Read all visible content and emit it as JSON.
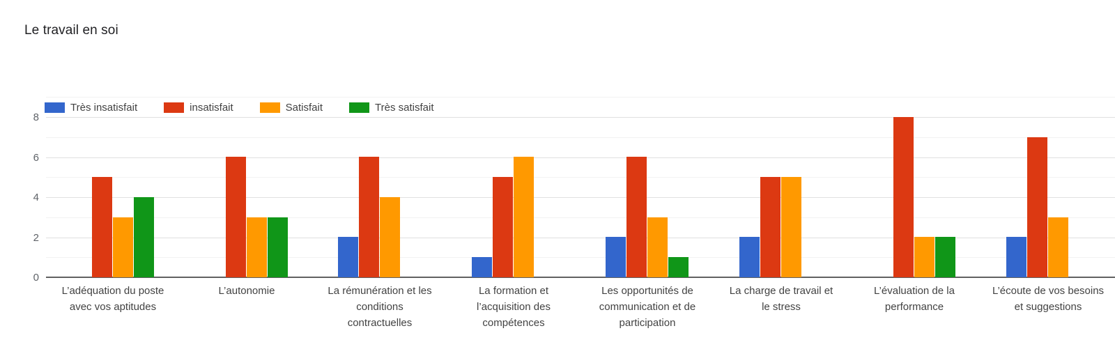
{
  "title": "Le travail en soi",
  "colors": {
    "tres_insatisfait": "#3366CC",
    "insatisfait": "#DC3912",
    "satisfait": "#FF9900",
    "tres_satisfait": "#109618",
    "gridline_major": "#e0e0e0",
    "gridline_minor": "#f2f2f2",
    "axis_baseline": "#616161",
    "tick_text": "#5f6368",
    "label_text": "#424242"
  },
  "legend": [
    {
      "label": "Très insatisfait",
      "color": "#3366CC"
    },
    {
      "label": "insatisfait",
      "color": "#DC3912"
    },
    {
      "label": "Satisfait",
      "color": "#FF9900"
    },
    {
      "label": "Très satisfait",
      "color": "#109618"
    }
  ],
  "chart_data": {
    "type": "bar",
    "title": "Le travail en soi",
    "categories": [
      "L’adéquation du poste avec vos aptitudes",
      "L’autonomie",
      "La rémunération et les conditions contractuelles",
      "La formation et l’acquisition des compétences",
      "Les opportunités de communication et de participation",
      "La charge de travail et le stress",
      "L’évaluation de la performance",
      "L’écoute de vos besoins et suggestions"
    ],
    "series": [
      {
        "name": "Très insatisfait",
        "color": "#3366CC",
        "values": [
          0,
          0,
          2,
          1,
          2,
          2,
          0,
          2
        ]
      },
      {
        "name": "insatisfait",
        "color": "#DC3912",
        "values": [
          5,
          6,
          6,
          5,
          6,
          5,
          8,
          7
        ]
      },
      {
        "name": "Satisfait",
        "color": "#FF9900",
        "values": [
          3,
          3,
          4,
          6,
          3,
          5,
          2,
          3
        ]
      },
      {
        "name": "Très satisfait",
        "color": "#109618",
        "values": [
          4,
          3,
          0,
          0,
          1,
          0,
          2,
          0
        ]
      }
    ],
    "xlabel": "",
    "ylabel": "",
    "ylim": [
      0,
      8
    ],
    "yticks": [
      0,
      2,
      4,
      6,
      8
    ],
    "minor_gridlines": [
      1,
      3,
      5,
      7
    ],
    "grid": true,
    "legend_position": "top-left"
  }
}
